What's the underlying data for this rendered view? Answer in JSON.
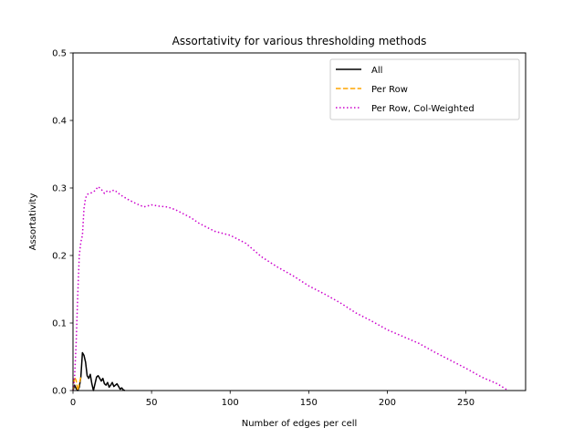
{
  "chart_data": {
    "type": "line",
    "title": "Assortativity for various thresholding methods",
    "xlabel": "Number of edges per cell",
    "ylabel": "Assortativity",
    "xlim": [
      0,
      288
    ],
    "ylim": [
      0,
      0.5
    ],
    "xticks": [
      0,
      50,
      100,
      150,
      200,
      250
    ],
    "yticks": [
      0.0,
      0.1,
      0.2,
      0.3,
      0.4,
      0.5
    ],
    "xtick_labels": [
      "0",
      "50",
      "100",
      "150",
      "200",
      "250"
    ],
    "ytick_labels": [
      "0.0",
      "0.1",
      "0.2",
      "0.3",
      "0.4",
      "0.5"
    ],
    "grid": false,
    "legend_position": "top-right",
    "series": [
      {
        "name": "All",
        "color": "#000000",
        "style": "solid",
        "x": [
          0,
          1,
          2,
          3,
          4,
          5,
          6,
          7,
          8,
          9,
          10,
          11,
          12,
          13,
          14,
          15,
          16,
          17,
          18,
          19,
          20,
          21,
          22,
          23,
          24,
          25,
          26,
          27,
          28,
          29,
          30,
          31,
          32,
          33
        ],
        "y": [
          0.0,
          0.008,
          0.003,
          0.0,
          0.005,
          0.02,
          0.056,
          0.052,
          0.042,
          0.022,
          0.018,
          0.024,
          0.01,
          0.0,
          0.01,
          0.02,
          0.022,
          0.018,
          0.014,
          0.018,
          0.01,
          0.008,
          0.012,
          0.005,
          0.008,
          0.012,
          0.006,
          0.008,
          0.01,
          0.006,
          0.002,
          0.004,
          0.001,
          0.0
        ]
      },
      {
        "name": "Per Row",
        "color": "#FFA500",
        "style": "dashed",
        "x": [
          0,
          1,
          2,
          3,
          4,
          5
        ],
        "y": [
          0.0,
          0.02,
          0.015,
          0.0,
          0.01,
          0.02
        ]
      },
      {
        "name": "Per Row, Col-Weighted",
        "color": "#CC00CC",
        "style": "dotted",
        "x": [
          0,
          1,
          2,
          3,
          4,
          5,
          6,
          7,
          8,
          9,
          10,
          12,
          14,
          16,
          18,
          20,
          22,
          24,
          26,
          28,
          30,
          35,
          40,
          45,
          50,
          55,
          60,
          65,
          70,
          75,
          80,
          90,
          100,
          110,
          120,
          130,
          140,
          150,
          160,
          170,
          180,
          190,
          200,
          210,
          220,
          230,
          240,
          250,
          260,
          270,
          277
        ],
        "y": [
          0.0,
          0.02,
          0.07,
          0.14,
          0.2,
          0.22,
          0.23,
          0.27,
          0.285,
          0.29,
          0.292,
          0.293,
          0.296,
          0.302,
          0.298,
          0.292,
          0.296,
          0.294,
          0.297,
          0.294,
          0.29,
          0.283,
          0.277,
          0.272,
          0.275,
          0.273,
          0.272,
          0.268,
          0.262,
          0.256,
          0.248,
          0.236,
          0.23,
          0.218,
          0.198,
          0.183,
          0.17,
          0.155,
          0.143,
          0.13,
          0.115,
          0.103,
          0.09,
          0.08,
          0.07,
          0.057,
          0.045,
          0.033,
          0.02,
          0.01,
          0.0
        ]
      }
    ]
  }
}
